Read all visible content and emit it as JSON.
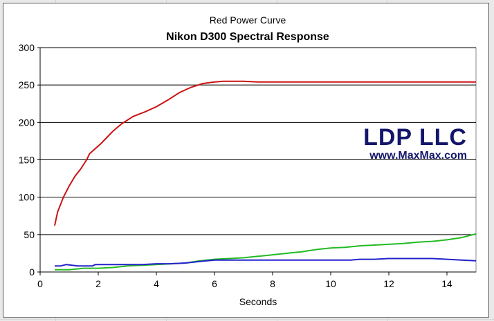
{
  "chart_data": {
    "type": "line",
    "subtitle": "Red Power Curve",
    "title": "Nikon D300 Spectral Response",
    "xlabel": "Seconds",
    "ylabel": "",
    "xlim": [
      0,
      15
    ],
    "ylim": [
      0,
      300
    ],
    "x_ticks": [
      0,
      2,
      4,
      6,
      8,
      10,
      12,
      14
    ],
    "y_ticks": [
      0,
      50,
      100,
      150,
      200,
      250,
      300
    ],
    "grid": "horizontal",
    "series": [
      {
        "color": "#cc1111",
        "points": [
          [
            0.5,
            62
          ],
          [
            0.6,
            80
          ],
          [
            0.8,
            100
          ],
          [
            1,
            115
          ],
          [
            1.2,
            128
          ],
          [
            1.4,
            138
          ],
          [
            1.6,
            150
          ],
          [
            1.7,
            158
          ],
          [
            1.9,
            165
          ],
          [
            2.1,
            172
          ],
          [
            2.3,
            180
          ],
          [
            2.5,
            188
          ],
          [
            2.8,
            198
          ],
          [
            3.2,
            208
          ],
          [
            3.6,
            214
          ],
          [
            4,
            221
          ],
          [
            4.4,
            230
          ],
          [
            4.8,
            240
          ],
          [
            5.2,
            247
          ],
          [
            5.6,
            252
          ],
          [
            6,
            254
          ],
          [
            6.3,
            255
          ],
          [
            7,
            255
          ],
          [
            7.5,
            254
          ],
          [
            8,
            254
          ],
          [
            9,
            254
          ],
          [
            10,
            254
          ],
          [
            11,
            254
          ],
          [
            12,
            254
          ],
          [
            13,
            254
          ],
          [
            14,
            254
          ],
          [
            15,
            254
          ]
        ]
      },
      {
        "color": "#22bb22",
        "points": [
          [
            0.5,
            3
          ],
          [
            1,
            3
          ],
          [
            1.5,
            5
          ],
          [
            2,
            5
          ],
          [
            2.5,
            6
          ],
          [
            3,
            8
          ],
          [
            3.5,
            9
          ],
          [
            4,
            10
          ],
          [
            4.5,
            11
          ],
          [
            5,
            12
          ],
          [
            5.5,
            15
          ],
          [
            6,
            17
          ],
          [
            6.5,
            18
          ],
          [
            7,
            19
          ],
          [
            7.5,
            21
          ],
          [
            8,
            23
          ],
          [
            8.5,
            25
          ],
          [
            9,
            27
          ],
          [
            9.5,
            30
          ],
          [
            10,
            32
          ],
          [
            10.5,
            33
          ],
          [
            11,
            35
          ],
          [
            11.5,
            36
          ],
          [
            12,
            37
          ],
          [
            12.5,
            38
          ],
          [
            13,
            40
          ],
          [
            13.5,
            41
          ],
          [
            14,
            43
          ],
          [
            14.5,
            46
          ],
          [
            15,
            51
          ]
        ]
      },
      {
        "color": "#2222cc",
        "points": [
          [
            0.5,
            8
          ],
          [
            0.7,
            8
          ],
          [
            0.9,
            10
          ],
          [
            1.1,
            9
          ],
          [
            1.3,
            8
          ],
          [
            1.6,
            8
          ],
          [
            1.8,
            8
          ],
          [
            1.9,
            10
          ],
          [
            2.5,
            10
          ],
          [
            3,
            10
          ],
          [
            3.5,
            10
          ],
          [
            4,
            11
          ],
          [
            4.5,
            11
          ],
          [
            5,
            12
          ],
          [
            5.5,
            14
          ],
          [
            6,
            16
          ],
          [
            7,
            16
          ],
          [
            8,
            16
          ],
          [
            9,
            16
          ],
          [
            10,
            16
          ],
          [
            10.7,
            16
          ],
          [
            11,
            17
          ],
          [
            11.5,
            17
          ],
          [
            12,
            18
          ],
          [
            13,
            18
          ],
          [
            13.5,
            18
          ],
          [
            14,
            17
          ],
          [
            14.5,
            16
          ],
          [
            15,
            15
          ]
        ]
      }
    ],
    "watermark": {
      "main": "LDP LLC",
      "sub": "www.MaxMax.com"
    }
  }
}
